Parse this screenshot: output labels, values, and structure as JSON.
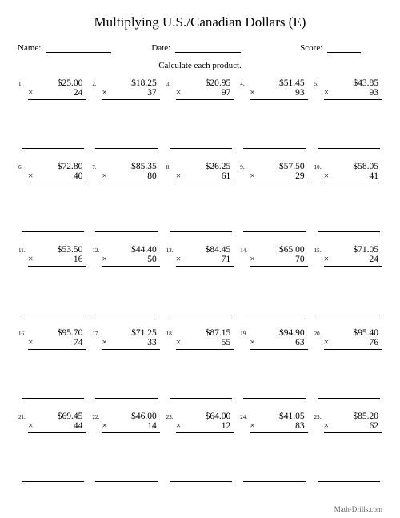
{
  "title": "Multiplying U.S./Canadian Dollars (E)",
  "labels": {
    "name": "Name:",
    "date": "Date:",
    "score": "Score:"
  },
  "instruction": "Calculate each product.",
  "times_sign": "×",
  "problems": [
    {
      "n": "1.",
      "top": "$25.00",
      "bot": "24"
    },
    {
      "n": "2.",
      "top": "$18.25",
      "bot": "37"
    },
    {
      "n": "3.",
      "top": "$20.95",
      "bot": "97"
    },
    {
      "n": "4.",
      "top": "$51.45",
      "bot": "93"
    },
    {
      "n": "5.",
      "top": "$43.85",
      "bot": "93"
    },
    {
      "n": "6.",
      "top": "$72.80",
      "bot": "40"
    },
    {
      "n": "7.",
      "top": "$85.35",
      "bot": "80"
    },
    {
      "n": "8.",
      "top": "$26.25",
      "bot": "61"
    },
    {
      "n": "9.",
      "top": "$57.50",
      "bot": "29"
    },
    {
      "n": "10.",
      "top": "$58.05",
      "bot": "41"
    },
    {
      "n": "11.",
      "top": "$53.50",
      "bot": "16"
    },
    {
      "n": "12.",
      "top": "$44.40",
      "bot": "50"
    },
    {
      "n": "13.",
      "top": "$84.45",
      "bot": "71"
    },
    {
      "n": "14.",
      "top": "$65.00",
      "bot": "70"
    },
    {
      "n": "15.",
      "top": "$71.05",
      "bot": "24"
    },
    {
      "n": "16.",
      "top": "$95.70",
      "bot": "74"
    },
    {
      "n": "17.",
      "top": "$71.25",
      "bot": "33"
    },
    {
      "n": "18.",
      "top": "$87.15",
      "bot": "55"
    },
    {
      "n": "19.",
      "top": "$94.90",
      "bot": "63"
    },
    {
      "n": "20.",
      "top": "$95.40",
      "bot": "76"
    },
    {
      "n": "21.",
      "top": "$69.45",
      "bot": "44"
    },
    {
      "n": "22.",
      "top": "$46.00",
      "bot": "14"
    },
    {
      "n": "23.",
      "top": "$64.00",
      "bot": "12"
    },
    {
      "n": "24.",
      "top": "$41.05",
      "bot": "83"
    },
    {
      "n": "25.",
      "top": "$85.20",
      "bot": "62"
    }
  ],
  "footer": "Math-Drills.com",
  "colors": {
    "text": "#000000",
    "bg": "#ffffff",
    "footer": "#666666"
  },
  "fonts": {
    "title_size": 17,
    "body_size": 11.5,
    "num_size": 7,
    "footer_size": 9
  }
}
